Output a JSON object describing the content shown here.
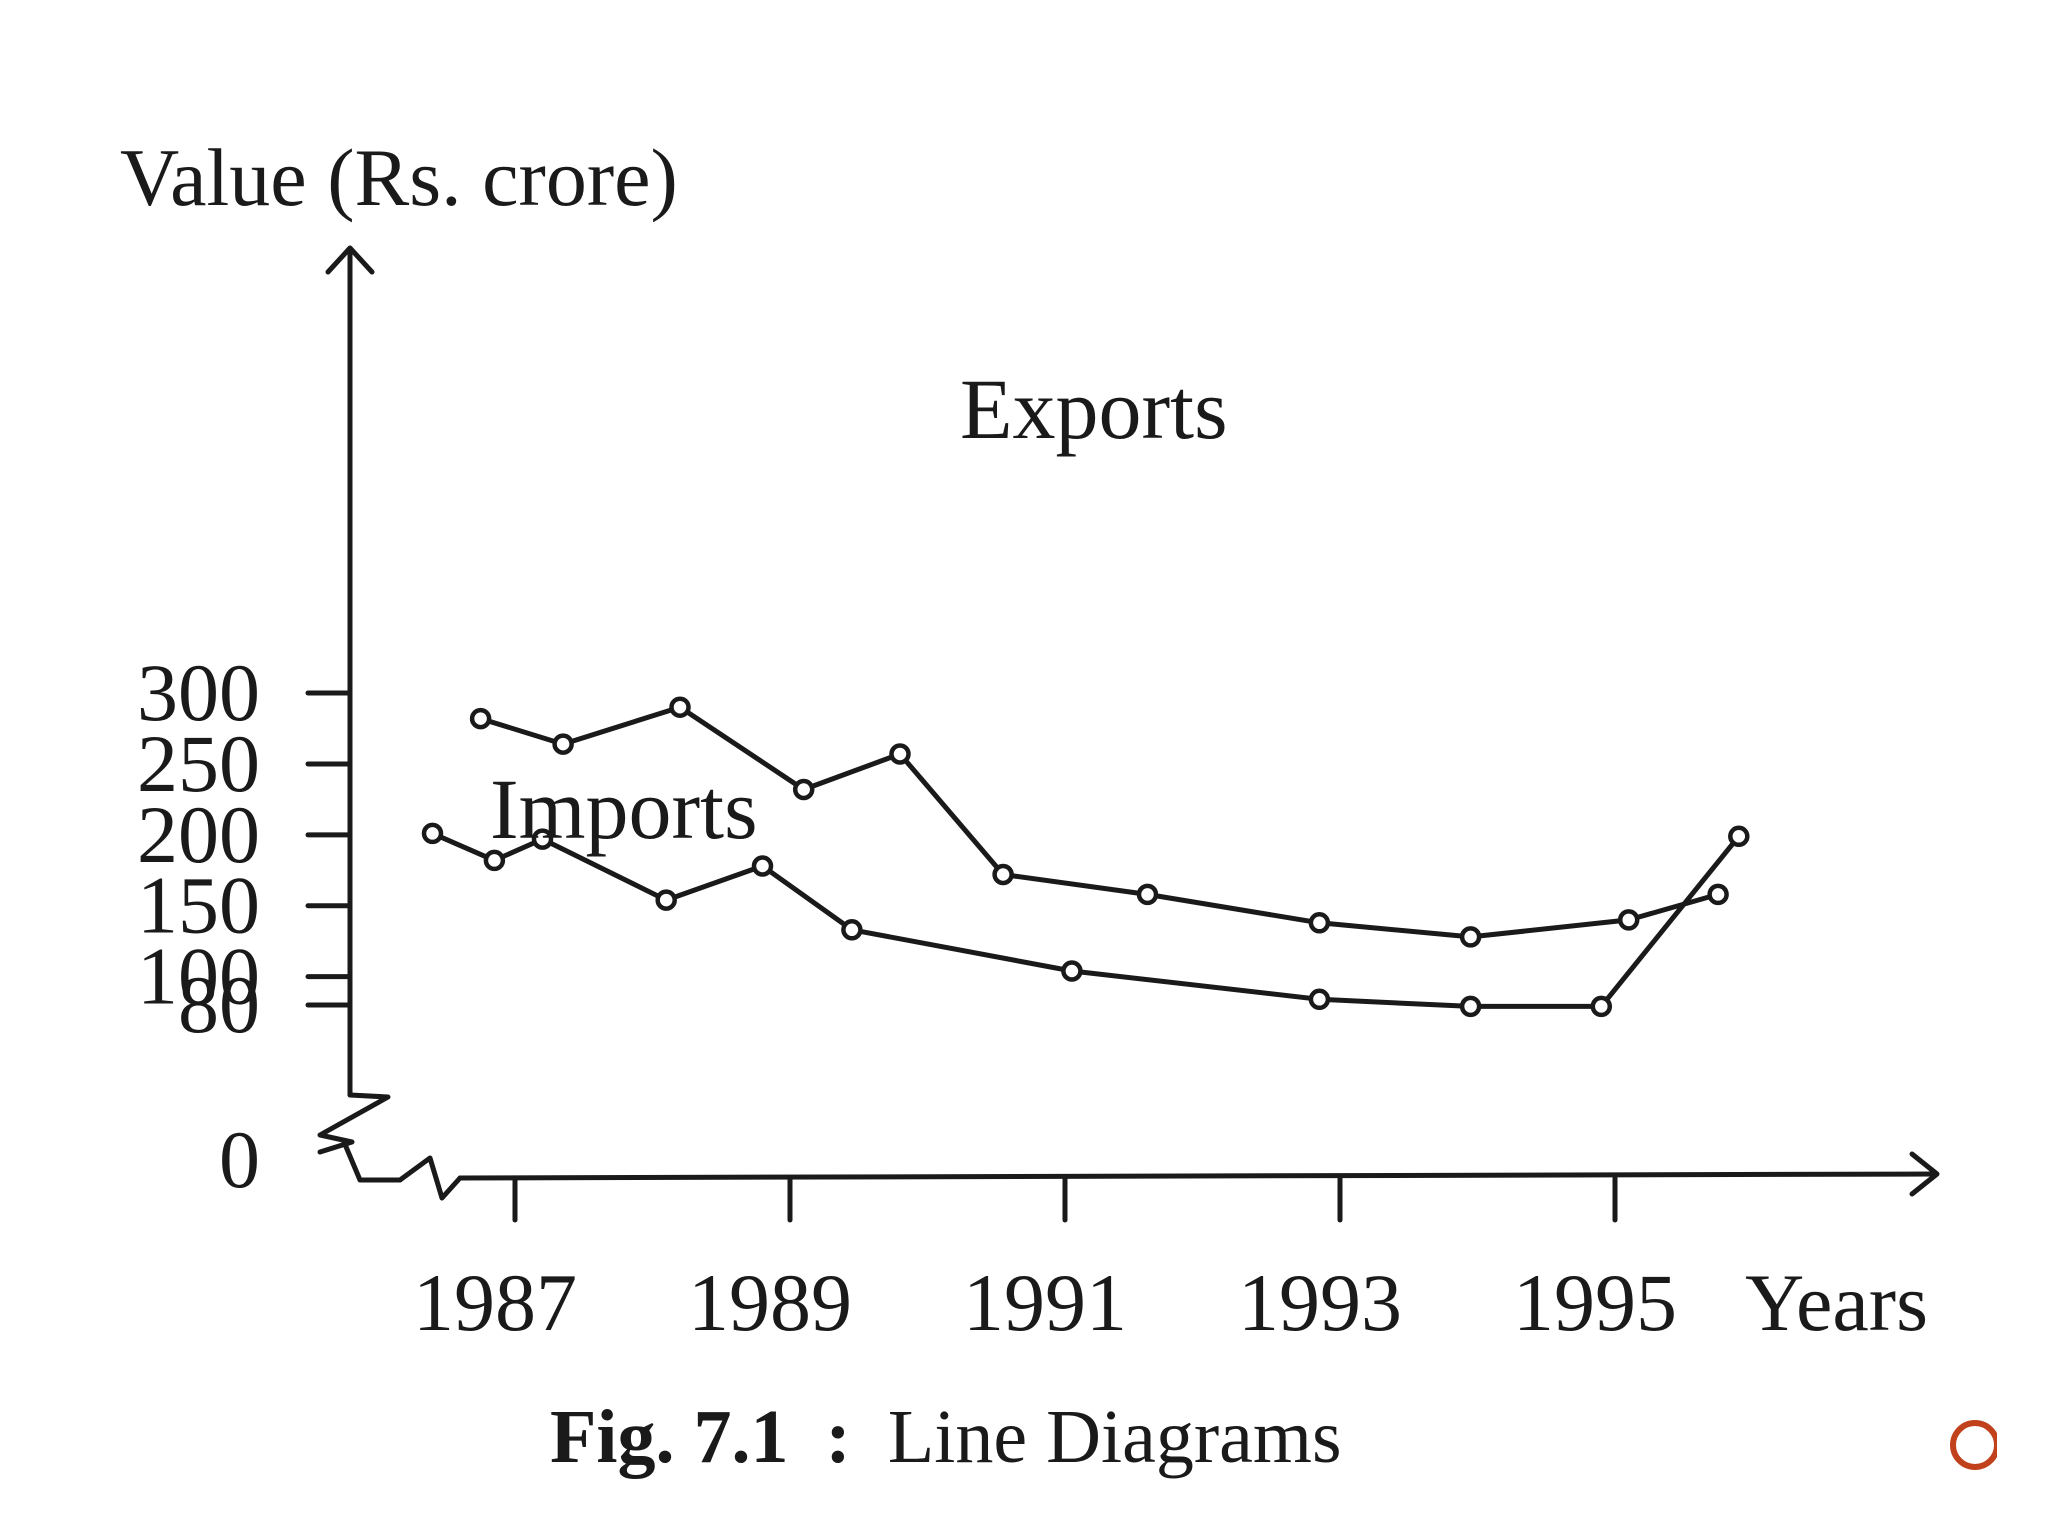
{
  "chart_data": {
    "type": "line",
    "ylabel": "Value (Rs. crore)",
    "xlabel": "Years",
    "caption_fig": "Fig. 7.1",
    "caption_sep": ":",
    "caption_text": "Line Diagrams",
    "y_ticks": [
      "300",
      "250",
      "200",
      "150",
      "100",
      "80",
      "0"
    ],
    "y_tick_values": [
      300,
      250,
      200,
      150,
      100,
      80,
      0
    ],
    "x_ticks": [
      "1987",
      "1989",
      "1991",
      "1993",
      "1995"
    ],
    "x_tick_values": [
      1987,
      1989,
      1991,
      1993,
      1995
    ],
    "xlim": [
      1985.7,
      1997.2
    ],
    "axis_break": true,
    "grid": false,
    "series": [
      {
        "name": "Exports",
        "x": [
          1986.75,
          1987.35,
          1988.2,
          1989.1,
          1989.8,
          1990.55,
          1991.6,
          1992.85,
          1993.95,
          1995.1,
          1995.75
        ],
        "values": [
          282,
          264,
          290,
          232,
          257,
          172,
          158,
          138,
          128,
          140,
          158
        ]
      },
      {
        "name": "Imports",
        "x": [
          1986.4,
          1986.85,
          1987.2,
          1988.1,
          1988.8,
          1989.45,
          1991.05,
          1992.85,
          1993.95,
          1994.9,
          1995.9
        ],
        "values": [
          201,
          182,
          197,
          154,
          178,
          133,
          104,
          84,
          79,
          79,
          199
        ]
      }
    ]
  }
}
